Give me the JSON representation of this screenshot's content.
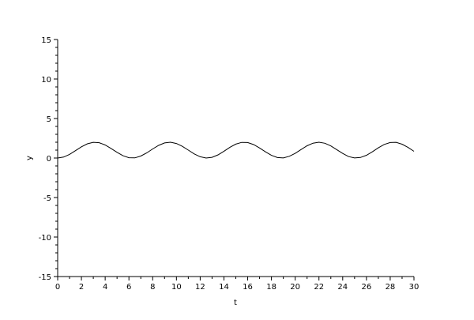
{
  "chart_data": {
    "type": "line",
    "title": "",
    "xlabel": "t",
    "ylabel": "y",
    "xlim": [
      0,
      30
    ],
    "ylim": [
      -15,
      15
    ],
    "xticks": [
      0,
      2,
      4,
      6,
      8,
      10,
      12,
      14,
      16,
      18,
      20,
      22,
      24,
      26,
      28,
      30
    ],
    "yticks": [
      -15,
      -10,
      -5,
      0,
      5,
      10,
      15
    ],
    "grid": false,
    "line_color": "#000000",
    "series": [
      {
        "x": [
          0,
          0.5,
          1,
          1.5,
          2,
          2.5,
          3,
          3.5,
          4,
          4.5,
          5,
          5.5,
          6,
          6.5,
          7,
          7.5,
          8,
          8.5,
          9,
          9.5,
          10,
          10.5,
          11,
          11.5,
          12,
          12.5,
          13,
          13.5,
          14,
          14.5,
          15,
          15.5,
          16,
          16.5,
          17,
          17.5,
          18,
          18.5,
          19,
          19.5,
          20,
          20.5,
          21,
          21.5,
          22,
          22.5,
          23,
          23.5,
          24,
          24.5,
          25,
          25.5,
          26,
          26.5,
          27,
          27.5,
          28,
          28.5,
          29,
          29.5,
          30
        ],
        "y": [
          0,
          0.122,
          0.46,
          0.929,
          1.416,
          1.801,
          1.99,
          1.936,
          1.654,
          1.211,
          0.716,
          0.291,
          0.04,
          0.023,
          0.246,
          0.653,
          1.146,
          1.602,
          1.911,
          1.997,
          1.839,
          1.476,
          0.996,
          0.517,
          0.156,
          0.002,
          0.093,
          0.405,
          0.863,
          1.355,
          1.76,
          1.979,
          1.958,
          1.702,
          1.275,
          0.781,
          0.34,
          0.055,
          0.011,
          0.223,
          0.592,
          1.08,
          1.548,
          1.884,
          2.0,
          1.873,
          1.533,
          1.062,
          0.576,
          0.18,
          0.009,
          0.068,
          0.353,
          0.794,
          1.292,
          1.715,
          1.963,
          1.989,
          1.748,
          1.338,
          0.846
        ]
      }
    ]
  }
}
